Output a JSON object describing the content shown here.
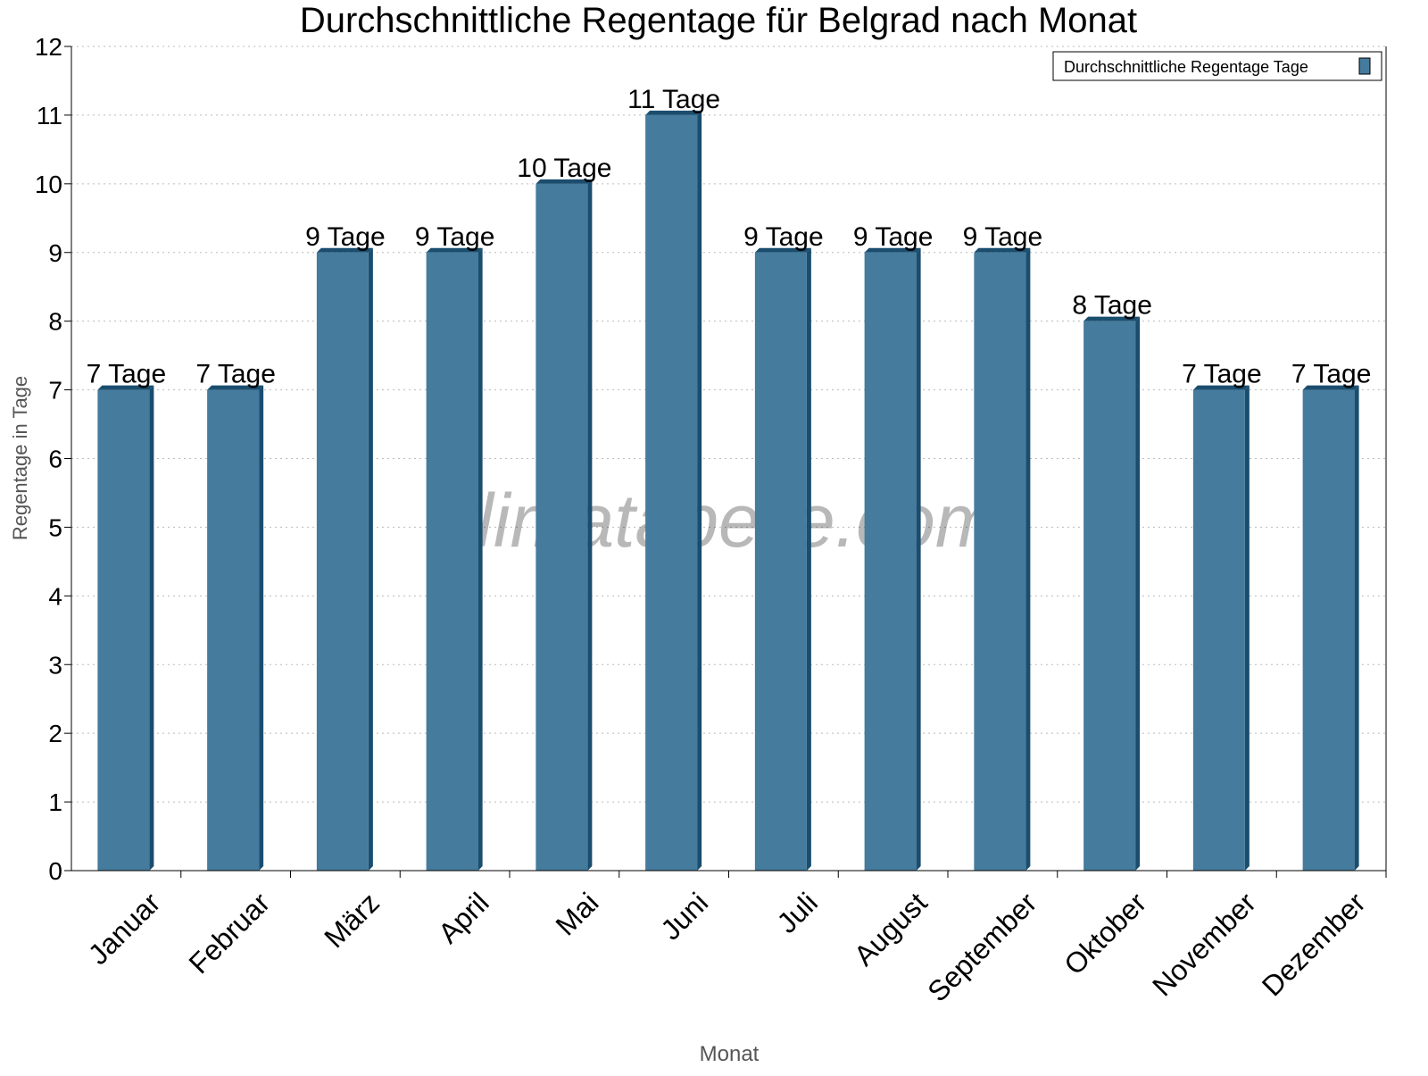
{
  "chart_data": {
    "type": "bar",
    "title": "Durchschnittliche Regentage für Belgrad nach Monat",
    "xlabel": "Monat",
    "ylabel": "Regentage in Tage",
    "ylim": [
      0,
      12
    ],
    "yticks": [
      "0",
      "1",
      "2",
      "3",
      "4",
      "5",
      "6",
      "7",
      "8",
      "9",
      "10",
      "11",
      "12"
    ],
    "grid": true,
    "legend_placement": "top-right",
    "categories": [
      "Januar",
      "Februar",
      "März",
      "April",
      "Mai",
      "Juni",
      "Juli",
      "August",
      "September",
      "Oktober",
      "November",
      "Dezember"
    ],
    "series": [
      {
        "name": "Durchschnittliche Regentage Tage",
        "values": [
          7,
          7,
          9,
          9,
          10,
          11,
          9,
          9,
          9,
          8,
          7,
          7
        ]
      }
    ],
    "data_labels": [
      "7 Tage",
      "7 Tage",
      "9 Tage",
      "9 Tage",
      "10 Tage",
      "11 Tage",
      "9 Tage",
      "9 Tage",
      "9 Tage",
      "8 Tage",
      "7 Tage",
      "7 Tage"
    ],
    "colors": {
      "bar": "#457b9d",
      "bar_side": "#1a4d6e"
    },
    "watermark": "klimatabelle.com"
  }
}
